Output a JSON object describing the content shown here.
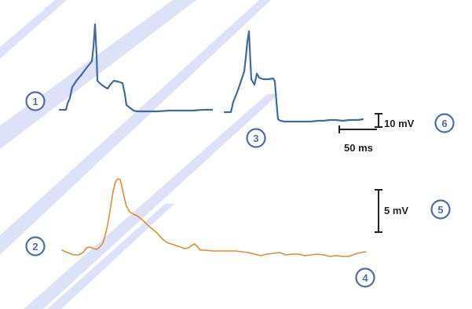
{
  "labels": {
    "m1": "1",
    "m2": "2",
    "m3": "3",
    "m4": "4",
    "m5": "5",
    "m6": "6"
  },
  "scale": {
    "voltage_top": "10 mV",
    "time": "50 ms",
    "voltage_bottom": "5 mV"
  },
  "colors": {
    "blue_trace": "#3f6c9e",
    "orange_trace": "#e08d2c",
    "marker": "#4a6fa5",
    "watermark": "#cdd4f5"
  }
}
